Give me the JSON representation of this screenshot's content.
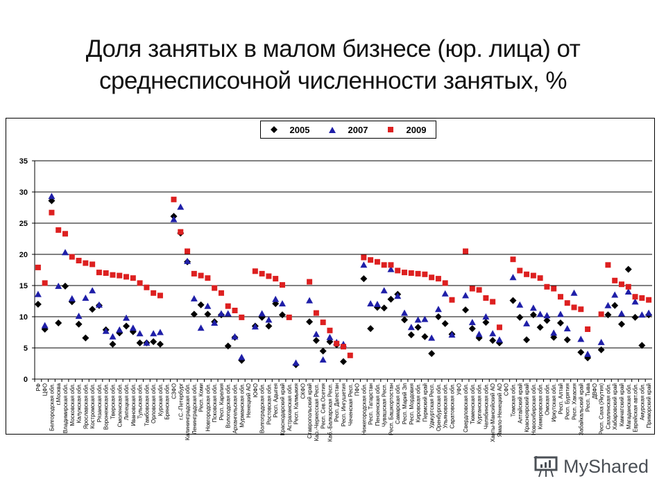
{
  "title_line1": "Доля занятых в малом бизнесе (юр. лица) от",
  "title_line2": "среднесписочной численности занятых, %",
  "legend": [
    {
      "label": "2005",
      "marker": "diamond",
      "color": "#000000"
    },
    {
      "label": "2007",
      "marker": "triangle",
      "color": "#1f1fa8"
    },
    {
      "label": "2009",
      "marker": "square",
      "color": "#dd2020"
    }
  ],
  "watermark": "MyShared",
  "chart_data": {
    "type": "scatter",
    "title": "Доля занятых в малом бизнесе (юр. лица) от среднесписочной численности занятых, %",
    "xlabel": "",
    "ylabel": "",
    "ylim": [
      0,
      35
    ],
    "yticks": [
      0,
      5,
      10,
      15,
      20,
      25,
      30,
      35
    ],
    "grid": true,
    "legend_position": "top",
    "categories": [
      "РФ",
      "ЦФО",
      "Белгородская обл.",
      "г.Москва",
      "Владимирская обл.",
      "Московская обл.",
      "Калужская обл.",
      "Ярославская обл.",
      "Костромская обл.",
      "Рязанская обл.",
      "Воронежская обл.",
      "Тверская обл.",
      "Смоленская обл.",
      "Липецкая обл.",
      "Ивановская обл.",
      "Тульская обл.",
      "Тамбовская обл.",
      "Орловская обл.",
      "Курская обл.",
      "Брянская обл.",
      "СЗФО",
      "г.С.-Петербург",
      "Калининградская обл.",
      "Ленинградская обл.",
      "Респ. Коми",
      "Новгородская обл.",
      "Псковская обл.",
      "Респ. Карелия",
      "Вологодская обл.",
      "Архангельская обл.",
      "Мурманская обл.",
      "Ненецкий АО",
      "ЮФО",
      "Волгоградская обл.",
      "Ростовская обл.",
      "Респ. Адыгея",
      "Краснодарский край",
      "Астраханская обл.",
      "Респ. Калмыкия",
      "СКФО",
      "Ставропольский край",
      "Кар.-Черкесская Респ.",
      "Респ. Сев.Осетия",
      "Каб.-Балкарская Респ.",
      "Респ. Дагестан",
      "Респ. Ингушетия",
      "Чеченская Респ.",
      "ПФО",
      "Нижегородская обл.",
      "Респ. Татарстан",
      "Пензенская обл.",
      "Чувашская Респ.",
      "Респ. Башкортостан",
      "Самарская обл.",
      "Респ. Марий Эл",
      "Респ. Мордовия",
      "Кировская обл.",
      "Пермский край",
      "Удмуртская Респ.",
      "Оренбургская обл.",
      "Ульяновская обл.",
      "Саратовская обл.",
      "УФО",
      "Свердловская обл.",
      "Тюменская обл.",
      "Курганская обл.",
      "Челябинская обл.",
      "Ханты-Мансийский АО",
      "Ямало-Ненецкий АО",
      "СФО",
      "Томская обл.",
      "Алтайский край",
      "Красноярский край",
      "Новосибирская обл.",
      "Кемеровская обл.",
      "Омская обл.",
      "Иркутская обл.",
      "Респ. Алтай",
      "Респ. Бурятия",
      "Респ. Хакасия",
      "Забайкальский край",
      "Респ. Тыва",
      "ДВФО",
      "Респ. Саха (Якутия)",
      "Сахалинская обл.",
      "Хабаровский край",
      "Камчатский край",
      "Магаданская обл.",
      "Еврейская авт.обл.",
      "Амурская обл.",
      "Приморский край"
    ],
    "series": [
      {
        "name": "2005",
        "marker": "diamond",
        "color": "#000000",
        "values": [
          12.0,
          8.0,
          28.6,
          9.0,
          14.9,
          12.4,
          8.8,
          6.6,
          11.2,
          11.8,
          7.9,
          5.6,
          7.4,
          8.5,
          7.6,
          5.8,
          5.8,
          6.0,
          5.6,
          null,
          26.1,
          23.4,
          18.8,
          10.4,
          11.9,
          10.4,
          9.2,
          10.3,
          5.3,
          6.7,
          3.0,
          null,
          8.5,
          9.9,
          8.5,
          12.1,
          10.3,
          null,
          2.3,
          null,
          9.2,
          6.2,
          4.5,
          6.0,
          5.5,
          2.8,
          null,
          null,
          16.1,
          8.1,
          11.5,
          11.4,
          12.8,
          13.6,
          9.5,
          7.1,
          8.3,
          6.8,
          4.1,
          10.0,
          8.9,
          7.2,
          null,
          11.1,
          8.1,
          6.6,
          9.1,
          6.2,
          5.8,
          null,
          12.6,
          9.9,
          6.3,
          10.3,
          8.3,
          9.4,
          6.7,
          9.0,
          6.3,
          null,
          4.3,
          3.4,
          null,
          4.7,
          10.3,
          11.8,
          8.8,
          17.6,
          9.9,
          5.4,
          10.3
        ]
      },
      {
        "name": "2007",
        "marker": "triangle",
        "color": "#1f1fa8",
        "values": [
          13.6,
          8.6,
          29.3,
          14.9,
          20.3,
          12.9,
          10.1,
          13.0,
          14.2,
          11.9,
          7.7,
          6.8,
          7.9,
          9.8,
          8.2,
          7.3,
          5.8,
          7.3,
          7.5,
          null,
          25.6,
          27.6,
          18.9,
          12.9,
          8.2,
          11.7,
          9.0,
          10.5,
          10.5,
          6.8,
          3.5,
          null,
          8.4,
          10.5,
          9.5,
          12.8,
          12.1,
          null,
          2.6,
          null,
          12.6,
          7.2,
          3.1,
          6.7,
          5.9,
          5.6,
          null,
          null,
          18.3,
          12.1,
          12.0,
          14.2,
          17.6,
          13.3,
          10.6,
          8.3,
          9.5,
          9.6,
          6.6,
          11.2,
          13.7,
          7.1,
          null,
          13.4,
          9.1,
          7.2,
          10.0,
          7.3,
          6.3,
          null,
          16.3,
          11.9,
          8.9,
          11.4,
          10.4,
          10.2,
          7.4,
          10.4,
          8.1,
          13.8,
          6.4,
          4.0,
          null,
          5.9,
          11.8,
          13.5,
          10.5,
          14.0,
          12.4,
          10.3,
          10.6
        ]
      },
      {
        "name": "2009",
        "marker": "square",
        "color": "#dd2020",
        "values": [
          17.9,
          15.4,
          26.7,
          23.9,
          23.3,
          19.6,
          19.0,
          18.6,
          18.4,
          17.1,
          17.0,
          16.7,
          16.6,
          16.4,
          16.2,
          15.4,
          14.7,
          13.8,
          13.4,
          null,
          28.8,
          23.6,
          20.5,
          16.9,
          16.6,
          16.2,
          14.6,
          13.8,
          11.7,
          11.0,
          9.9,
          null,
          17.3,
          16.9,
          16.5,
          16.1,
          15.1,
          9.9,
          null,
          null,
          15.6,
          10.6,
          9.1,
          7.8,
          5.7,
          5.2,
          3.8,
          null,
          19.5,
          19.1,
          18.8,
          18.3,
          18.3,
          17.4,
          17.1,
          17.0,
          16.9,
          16.8,
          16.3,
          16.1,
          15.4,
          12.7,
          null,
          20.5,
          14.5,
          14.3,
          13.0,
          12.4,
          8.3,
          null,
          19.2,
          17.4,
          16.8,
          16.6,
          16.2,
          14.8,
          14.5,
          13.2,
          12.2,
          11.5,
          11.2,
          8.0,
          null,
          10.4,
          18.3,
          15.8,
          15.2,
          14.8,
          13.2,
          13.0,
          12.7
        ]
      }
    ]
  }
}
